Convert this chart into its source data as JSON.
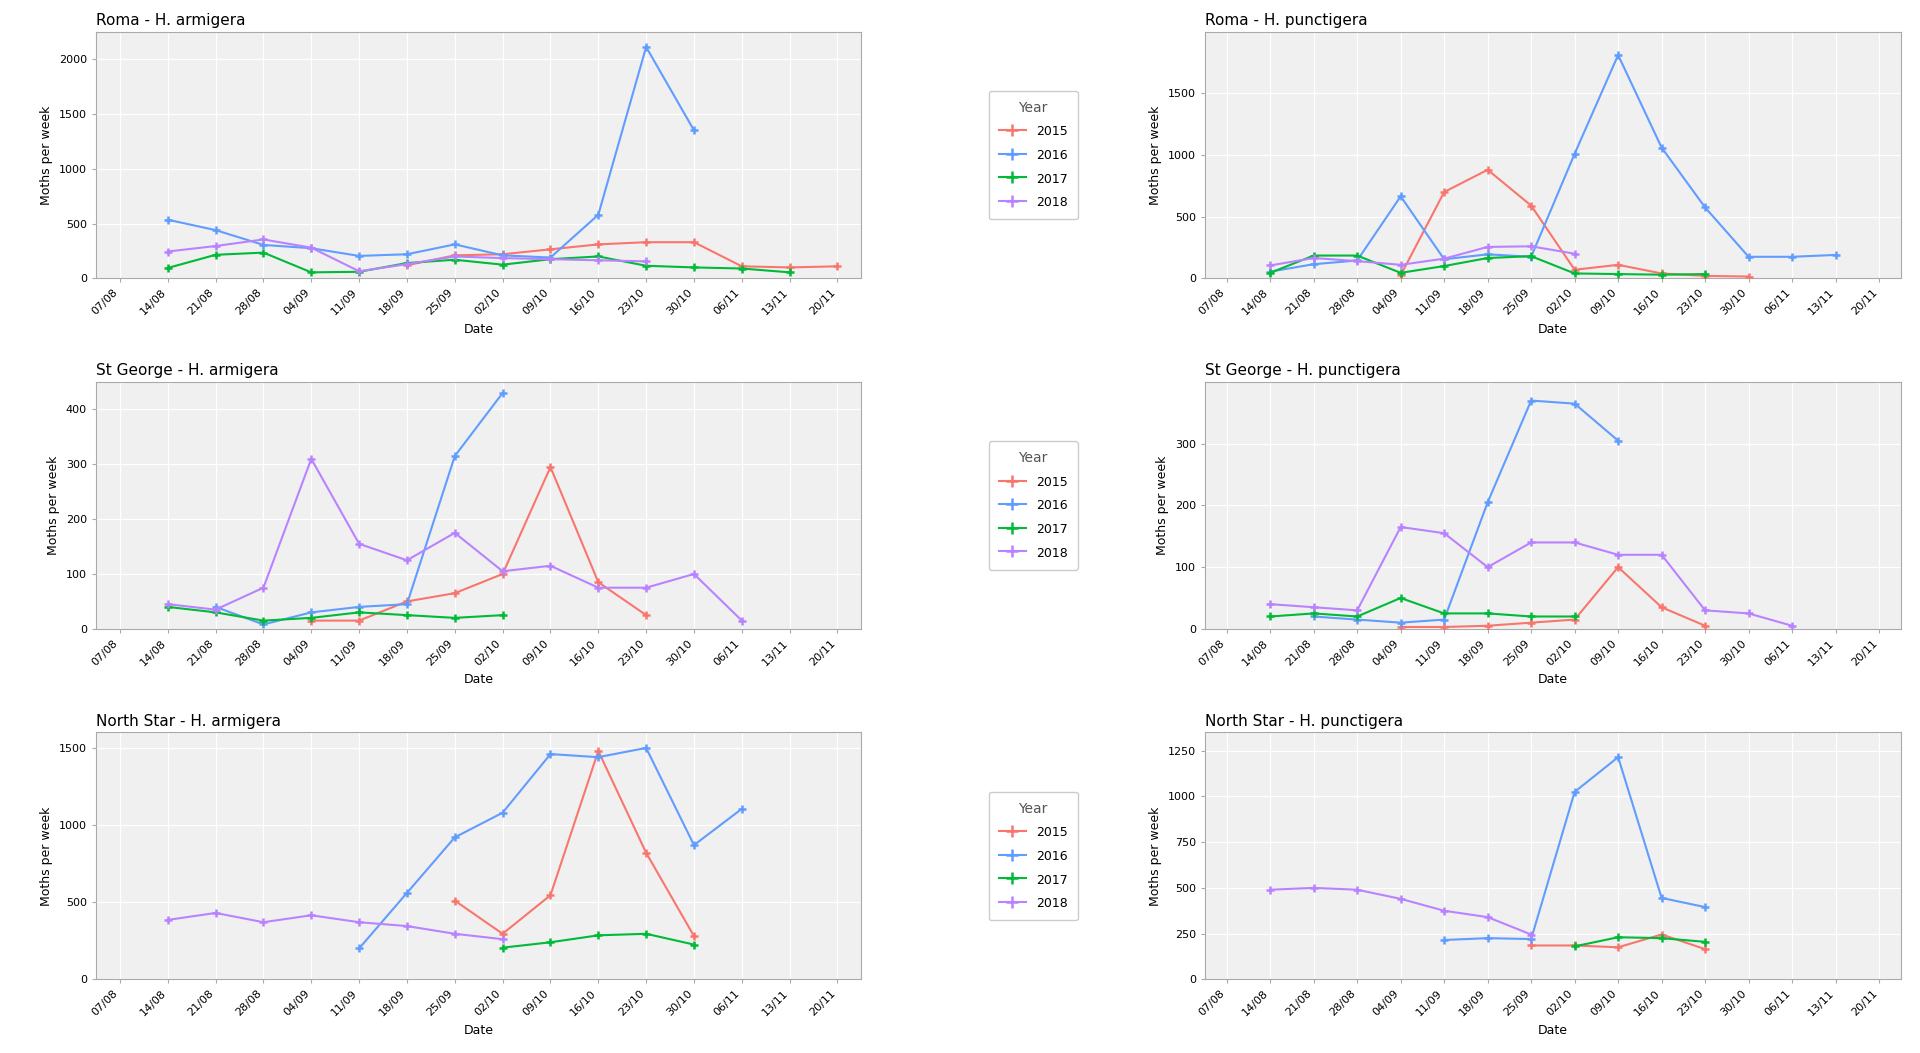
{
  "x_labels": [
    "07/08",
    "14/08",
    "21/08",
    "28/08",
    "04/09",
    "11/09",
    "18/09",
    "25/09",
    "02/10",
    "09/10",
    "16/10",
    "23/10",
    "30/10",
    "06/11",
    "13/11",
    "20/11"
  ],
  "colors": {
    "2015": "#F8766D",
    "2016": "#619CFF",
    "2017": "#00BA38",
    "2018": "#B983FF"
  },
  "plots": [
    {
      "title": "Roma - H. armigera",
      "ylabel": "Moths per week",
      "ylim": [
        0,
        2250
      ],
      "yticks": [
        0,
        500,
        1000,
        1500,
        2000
      ],
      "series": {
        "2015": [
          null,
          null,
          null,
          null,
          null,
          null,
          120,
          210,
          220,
          265,
          310,
          330,
          330,
          110,
          100,
          110
        ],
        "2016": [
          null,
          535,
          440,
          305,
          275,
          205,
          220,
          310,
          210,
          190,
          580,
          2110,
          1350,
          null,
          null,
          null
        ],
        "2017": [
          null,
          95,
          215,
          235,
          55,
          60,
          140,
          170,
          125,
          175,
          200,
          115,
          100,
          90,
          55,
          null
        ],
        "2018": [
          null,
          245,
          295,
          355,
          280,
          65,
          130,
          200,
          185,
          175,
          165,
          155,
          null,
          null,
          null,
          null
        ]
      }
    },
    {
      "title": "Roma - H. punctigera",
      "ylabel": "Moths per week",
      "ylim": [
        0,
        2000
      ],
      "yticks": [
        0,
        500,
        1000,
        1500
      ],
      "series": {
        "2015": [
          null,
          null,
          null,
          null,
          25,
          700,
          880,
          590,
          70,
          110,
          40,
          20,
          15,
          null,
          null,
          null
        ],
        "2016": [
          null,
          55,
          115,
          145,
          665,
          155,
          195,
          175,
          1010,
          1810,
          1060,
          575,
          175,
          175,
          190,
          null
        ],
        "2017": [
          null,
          45,
          185,
          185,
          45,
          100,
          165,
          180,
          40,
          35,
          30,
          35,
          null,
          null,
          null,
          null
        ],
        "2018": [
          null,
          105,
          165,
          140,
          110,
          160,
          255,
          260,
          200,
          null,
          null,
          null,
          null,
          null,
          null,
          null
        ]
      }
    },
    {
      "title": "St George - H. armigera",
      "ylabel": "Moths per week",
      "ylim": [
        0,
        450
      ],
      "yticks": [
        0,
        100,
        200,
        300,
        400
      ],
      "series": {
        "2015": [
          null,
          null,
          null,
          null,
          15,
          15,
          50,
          65,
          100,
          295,
          85,
          25,
          null,
          null,
          null,
          null
        ],
        "2016": [
          null,
          null,
          40,
          8,
          30,
          40,
          45,
          315,
          430,
          null,
          null,
          null,
          null,
          null,
          null,
          null
        ],
        "2017": [
          null,
          40,
          30,
          15,
          20,
          30,
          25,
          20,
          25,
          null,
          null,
          null,
          null,
          null,
          null,
          null
        ],
        "2018": [
          null,
          45,
          35,
          75,
          310,
          155,
          125,
          175,
          105,
          115,
          75,
          75,
          100,
          15,
          null,
          null
        ]
      }
    },
    {
      "title": "St George - H. punctigera",
      "ylabel": "Moths per week",
      "ylim": [
        0,
        400
      ],
      "yticks": [
        0,
        100,
        200,
        300
      ],
      "series": {
        "2015": [
          null,
          null,
          null,
          null,
          3,
          3,
          5,
          10,
          15,
          100,
          35,
          5,
          null,
          null,
          null,
          null
        ],
        "2016": [
          null,
          null,
          20,
          15,
          10,
          15,
          205,
          370,
          365,
          305,
          null,
          null,
          null,
          null,
          null,
          null
        ],
        "2017": [
          null,
          20,
          25,
          20,
          50,
          25,
          25,
          20,
          20,
          null,
          null,
          null,
          null,
          null,
          null,
          null
        ],
        "2018": [
          null,
          40,
          35,
          30,
          165,
          155,
          100,
          140,
          140,
          120,
          120,
          30,
          25,
          5,
          null,
          null
        ]
      }
    },
    {
      "title": "North Star - H. armigera",
      "ylabel": "Moths per week",
      "ylim": [
        0,
        1600
      ],
      "yticks": [
        0,
        500,
        1000,
        1500
      ],
      "series": {
        "2015": [
          null,
          null,
          null,
          null,
          null,
          null,
          null,
          510,
          295,
          545,
          1480,
          820,
          280,
          null,
          null,
          null
        ],
        "2016": [
          null,
          null,
          null,
          null,
          null,
          200,
          560,
          920,
          1080,
          1460,
          1440,
          1500,
          870,
          1105,
          null,
          null
        ],
        "2017": [
          null,
          null,
          null,
          null,
          null,
          null,
          null,
          null,
          205,
          240,
          285,
          295,
          225,
          null,
          null,
          null
        ],
        "2018": [
          null,
          385,
          430,
          370,
          415,
          370,
          345,
          295,
          260,
          null,
          null,
          null,
          null,
          null,
          null,
          null
        ]
      }
    },
    {
      "title": "North Star - H. punctigera",
      "ylabel": "Moths per week",
      "ylim": [
        0,
        1350
      ],
      "yticks": [
        0,
        250,
        500,
        750,
        1000,
        1250
      ],
      "series": {
        "2015": [
          null,
          null,
          null,
          null,
          null,
          null,
          null,
          185,
          185,
          175,
          245,
          165,
          null,
          null,
          null,
          null
        ],
        "2016": [
          null,
          null,
          null,
          null,
          null,
          215,
          225,
          220,
          1025,
          1215,
          445,
          395,
          null,
          null,
          null,
          null
        ],
        "2017": [
          null,
          null,
          null,
          null,
          null,
          null,
          null,
          null,
          180,
          230,
          225,
          205,
          null,
          null,
          null,
          null
        ],
        "2018": [
          null,
          490,
          500,
          490,
          440,
          375,
          340,
          245,
          null,
          null,
          null,
          null,
          null,
          null,
          null,
          null
        ]
      }
    }
  ],
  "background_color": "#ffffff",
  "legend_title": "Year",
  "years": [
    "2015",
    "2016",
    "2017",
    "2018"
  ]
}
